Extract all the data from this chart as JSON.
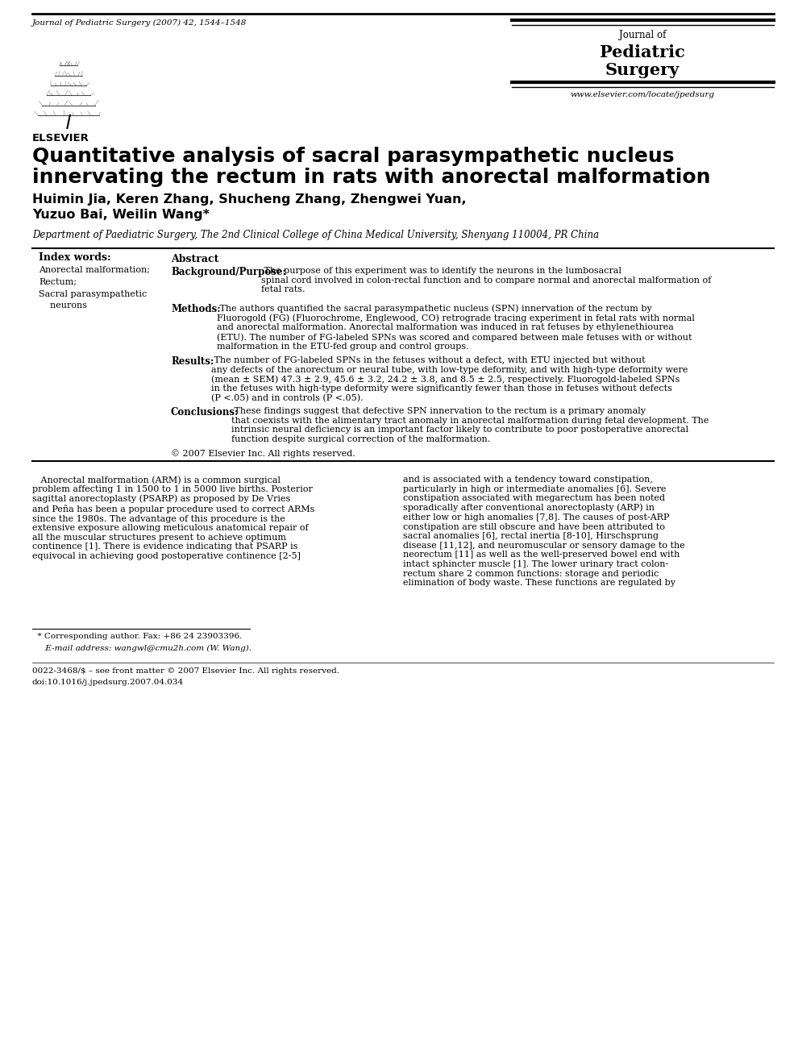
{
  "journal_header": "Journal of Pediatric Surgery (2007) 42, 1544–1548",
  "journal_name_line1": "Journal of",
  "journal_name_line2": "Pediatric",
  "journal_name_line3": "Surgery",
  "journal_url": "www.elsevier.com/locate/jpedsurg",
  "title_line1": "Quantitative analysis of sacral parasympathetic nucleus",
  "title_line2": "innervating the rectum in rats with anorectal malformation",
  "authors_line1": "Huimin Jia, Keren Zhang, Shucheng Zhang, Zhengwei Yuan,",
  "authors_line2": "Yuzuo Bai, Weilin Wang*",
  "affiliation": "Department of Paediatric Surgery, The 2nd Clinical College of China Medical University, Shenyang 110004, PR China",
  "index_words_title": "Index words:",
  "index_words": [
    "Anorectal malformation;",
    "Rectum;",
    "Sacral parasympathetic",
    "    neurons"
  ],
  "abstract_title": "Abstract",
  "background_label": "Background/Purpose:",
  "background_text": " The purpose of this experiment was to identify the neurons in the lumbosacral\nspinal cord involved in colon-rectal function and to compare normal and anorectal malformation of\nfetal rats.",
  "methods_label": "Methods:",
  "methods_text": " The authors quantified the sacral parasympathetic nucleus (SPN) innervation of the rectum by\nFluorogold (FG) (Fluorochrome, Englewood, CO) retrograde tracing experiment in fetal rats with normal\nand anorectal malformation. Anorectal malformation was induced in rat fetuses by ethylenethiourea\n(ETU). The number of FG-labeled SPNs was scored and compared between male fetuses with or without\nmalformation in the ETU-fed group and control groups.",
  "results_label": "Results:",
  "results_text": " The number of FG-labeled SPNs in the fetuses without a defect, with ETU injected but without\nany defects of the anorectum or neural tube, with low-type deformity, and with high-type deformity were\n(mean ± SEM) 47.3 ± 2.9, 45.6 ± 3.2, 24.2 ± 3.8, and 8.5 ± 2.5, respectively. Fluorogold-labeled SPNs\nin the fetuses with high-type deformity were significantly fewer than those in fetuses without defects\n(P <.05) and in controls (P <.05).",
  "conclusions_label": "Conclusions:",
  "conclusions_text": " These findings suggest that defective SPN innervation to the rectum is a primary anomaly\nthat coexists with the alimentary tract anomaly in anorectal malformation during fetal development. The\nintrinsic neural deficiency is an important factor likely to contribute to poor postoperative anorectal\nfunction despite surgical correction of the malformation.",
  "copyright": "© 2007 Elsevier Inc. All rights reserved.",
  "body_col1_text": "   Anorectal malformation (ARM) is a common surgical\nproblem affecting 1 in 1500 to 1 in 5000 live births. Posterior\nsagittal anorectoplasty (PSARP) as proposed by De Vries\nand Peña has been a popular procedure used to correct ARMs\nsince the 1980s. The advantage of this procedure is the\nextensive exposure allowing meticulous anatomical repair of\nall the muscular structures present to achieve optimum\ncontinence [1]. There is evidence indicating that PSARP is\nequivocal in achieving good postoperative continence [2-5]",
  "body_col2_text": "and is associated with a tendency toward constipation,\nparticularly in high or intermediate anomalies [6]. Severe\nconstipation associated with megarectum has been noted\nsporadically after conventional anorectoplasty (ARP) in\neither low or high anomalies [7,8]. The causes of post-ARP\nconstipation are still obscure and have been attributed to\nsacral anomalies [6], rectal inertia [8-10], Hirschsprung\ndisease [11,12], and neuromuscular or sensory damage to the\nneorectum [11] as well as the well-preserved bowel end with\nintact sphincter muscle [1]. The lower urinary tract colon-\nrectum share 2 common functions: storage and periodic\nelimination of body waste. These functions are regulated by",
  "footnote_star": "  * Corresponding author. Fax: +86 24 23903396.",
  "footnote_email": "     E-mail address: wangwl@cmu2h.com (W. Wang).",
  "bottom_line1": "0022-3468/$ – see front matter © 2007 Elsevier Inc. All rights reserved.",
  "bottom_line2": "doi:10.1016/j.jpedsurg.2007.04.034",
  "bg": "#ffffff"
}
